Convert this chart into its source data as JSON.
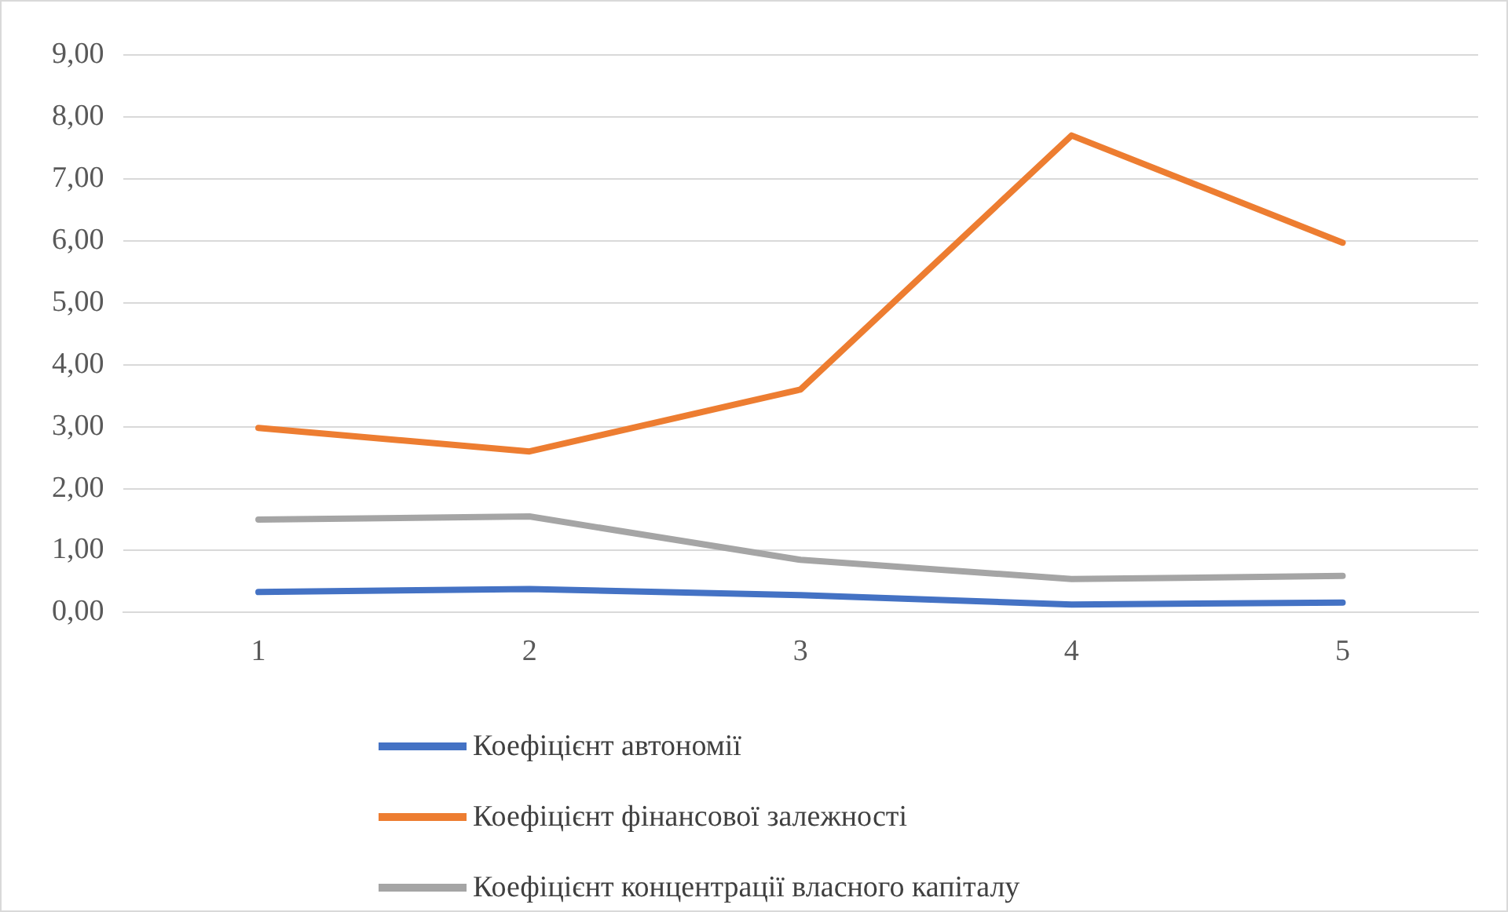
{
  "chart_data": {
    "type": "line",
    "categories": [
      "1",
      "2",
      "3",
      "4",
      "5"
    ],
    "series": [
      {
        "name": "Коефіцієнт автономії",
        "color": "#4472c4",
        "values": [
          0.33,
          0.38,
          0.28,
          0.13,
          0.16
        ]
      },
      {
        "name": "Коефіцієнт фінансової залежності",
        "color": "#ed7d31",
        "values": [
          2.98,
          2.6,
          3.6,
          7.7,
          5.97
        ]
      },
      {
        "name": "Коефіцієнт концентрації власного капіталу",
        "color": "#a5a5a5",
        "values": [
          1.5,
          1.55,
          0.85,
          0.54,
          0.59
        ]
      }
    ],
    "ylim": [
      0,
      9
    ],
    "yticks": [
      {
        "value": 0,
        "label": "0,00"
      },
      {
        "value": 1,
        "label": "1,00"
      },
      {
        "value": 2,
        "label": "2,00"
      },
      {
        "value": 3,
        "label": "3,00"
      },
      {
        "value": 4,
        "label": "4,00"
      },
      {
        "value": 5,
        "label": "5,00"
      },
      {
        "value": 6,
        "label": "6,00"
      },
      {
        "value": 7,
        "label": "7,00"
      },
      {
        "value": 8,
        "label": "8,00"
      },
      {
        "value": 9,
        "label": "9,00"
      }
    ],
    "grid": "y",
    "legend": "bottom",
    "marker": "none",
    "line_style": "solid"
  }
}
